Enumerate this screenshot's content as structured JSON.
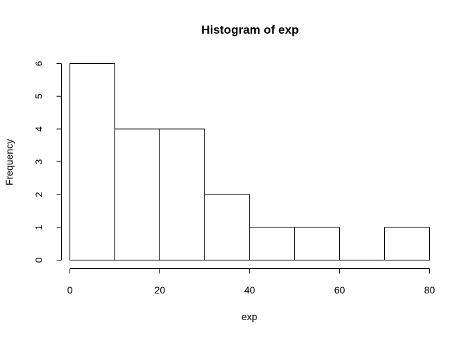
{
  "chart_data": {
    "type": "bar",
    "title": "Histogram of exp",
    "xlabel": "exp",
    "ylabel": "Frequency",
    "bins": [
      {
        "start": 0,
        "end": 10,
        "count": 6
      },
      {
        "start": 10,
        "end": 20,
        "count": 4
      },
      {
        "start": 20,
        "end": 30,
        "count": 4
      },
      {
        "start": 30,
        "end": 40,
        "count": 2
      },
      {
        "start": 40,
        "end": 50,
        "count": 1
      },
      {
        "start": 50,
        "end": 60,
        "count": 1
      },
      {
        "start": 60,
        "end": 70,
        "count": 0
      },
      {
        "start": 70,
        "end": 80,
        "count": 1
      }
    ],
    "xlim": [
      0,
      80
    ],
    "ylim": [
      0,
      6
    ],
    "xticks": [
      0,
      20,
      40,
      60,
      80
    ],
    "yticks": [
      0,
      1,
      2,
      3,
      4,
      5,
      6
    ],
    "grid": false,
    "legend": "none"
  }
}
